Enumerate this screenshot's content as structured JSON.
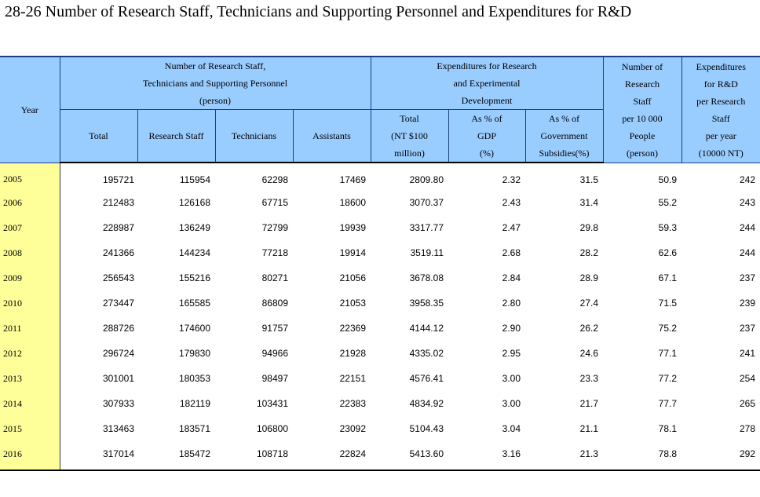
{
  "title": "28-26  Number of Research Staff, Technicians and Supporting Personnel and Expenditures for R&D",
  "header": {
    "year": "Year",
    "group_personnel": [
      "Number of Research Staff,",
      "Technicians and Supporting Personnel",
      "(person)"
    ],
    "group_expenditure": [
      "Expenditures for Research",
      "and Experimental",
      "Development"
    ],
    "staff_per_people": [
      "Number of",
      "Research",
      "Staff",
      "per 10 000",
      "People",
      "(person)"
    ],
    "expenditure_per_staff": [
      "Expenditures",
      "for R&D",
      "per Research",
      "Staff",
      "per year",
      "(10000 NT)"
    ],
    "total": "Total",
    "research_staff": "Research Staff",
    "technicians": "Technicians",
    "assistants": "Assistants",
    "exp_total": [
      "Total",
      "(NT $100",
      "million)"
    ],
    "pct_gdp": [
      "As % of",
      "GDP",
      "(%)"
    ],
    "pct_gov": [
      "As % of",
      "Government",
      "Subsidies(%)"
    ]
  },
  "rows": [
    [
      "2005",
      "195721",
      "115954",
      "62298",
      "17469",
      "2809.80",
      "2.32",
      "31.5",
      "50.9",
      "242"
    ],
    [
      "2006",
      "212483",
      "126168",
      "67715",
      "18600",
      "3070.37",
      "2.43",
      "31.4",
      "55.2",
      "243"
    ],
    [
      "2007",
      "228987",
      "136249",
      "72799",
      "19939",
      "3317.77",
      "2.47",
      "29.8",
      "59.3",
      "244"
    ],
    [
      "2008",
      "241366",
      "144234",
      "77218",
      "19914",
      "3519.11",
      "2.68",
      "28.2",
      "62.6",
      "244"
    ],
    [
      "2009",
      "256543",
      "155216",
      "80271",
      "21056",
      "3678.08",
      "2.84",
      "28.9",
      "67.1",
      "237"
    ],
    [
      "2010",
      "273447",
      "165585",
      "86809",
      "21053",
      "3958.35",
      "2.80",
      "27.4",
      "71.5",
      "239"
    ],
    [
      "2011",
      "288726",
      "174600",
      "91757",
      "22369",
      "4144.12",
      "2.90",
      "26.2",
      "75.2",
      "237"
    ],
    [
      "2012",
      "296724",
      "179830",
      "94966",
      "21928",
      "4335.02",
      "2.95",
      "24.6",
      "77.1",
      "241"
    ],
    [
      "2013",
      "301001",
      "180353",
      "98497",
      "22151",
      "4576.41",
      "3.00",
      "23.3",
      "77.2",
      "254"
    ],
    [
      "2014",
      "307933",
      "182119",
      "103431",
      "22383",
      "4834.92",
      "3.00",
      "21.7",
      "77.7",
      "265"
    ],
    [
      "2015",
      "313463",
      "183571",
      "106800",
      "23092",
      "5104.43",
      "3.04",
      "21.1",
      "78.1",
      "278"
    ],
    [
      "2016",
      "317014",
      "185472",
      "108718",
      "22824",
      "5413.60",
      "3.16",
      "21.3",
      "78.8",
      "292"
    ]
  ]
}
